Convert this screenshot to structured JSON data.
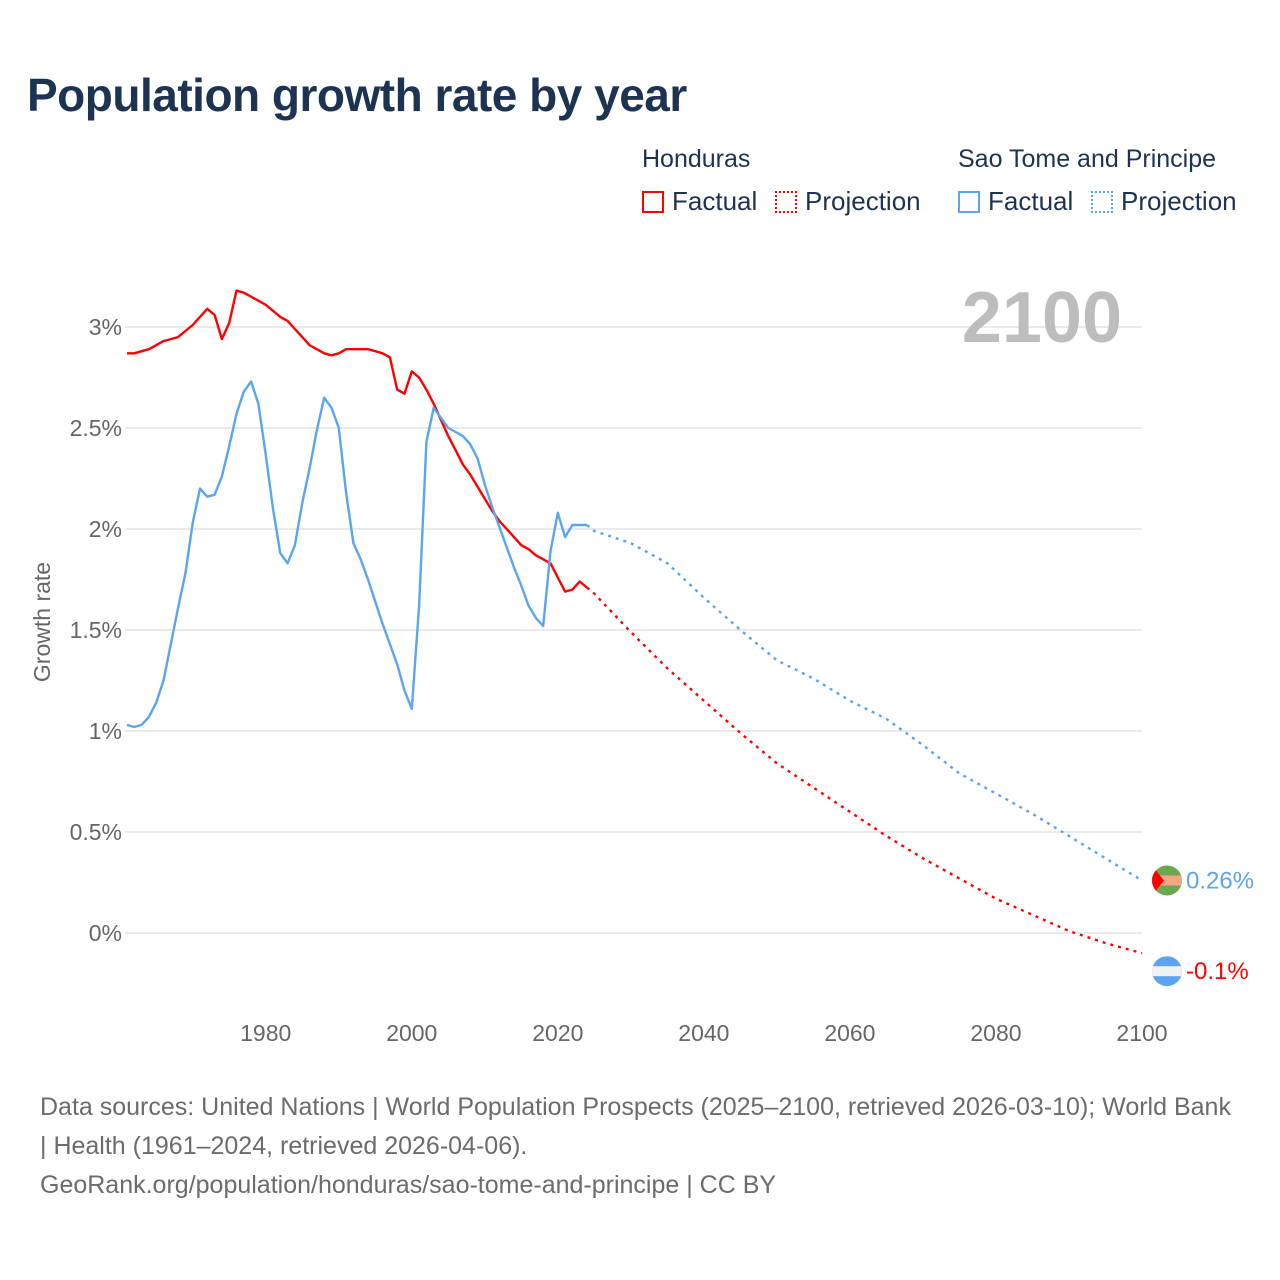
{
  "title": "Population growth rate by year",
  "legend": {
    "groups": [
      {
        "country": "Honduras",
        "factual": "Factual",
        "projection": "Projection",
        "color": "#ff0000"
      },
      {
        "country": "Sao Tome and Principe",
        "factual": "Factual",
        "projection": "Projection",
        "color": "#5aa5ee"
      }
    ]
  },
  "footer": {
    "line1": "Data sources: United Nations | World Population Prospects (2025–2100, retrieved 2026-03-10); World Bank | Health (1961–2024, retrieved 2026-04-06).",
    "line2": "GeoRank.org/population/honduras/sao-tome-and-principe | CC BY"
  },
  "chart_data": {
    "type": "line",
    "title": "Population growth rate by year",
    "xlabel": "",
    "ylabel": "Growth rate",
    "year_display": "2100",
    "xlim": [
      1961,
      2100
    ],
    "ylim": [
      -0.25,
      3.3
    ],
    "x_ticks": [
      1980,
      2000,
      2020,
      2040,
      2060,
      2080,
      2100
    ],
    "y_ticks": [
      {
        "v": 0,
        "label": "0%"
      },
      {
        "v": 0.5,
        "label": "0.5%"
      },
      {
        "v": 1,
        "label": "1%"
      },
      {
        "v": 1.5,
        "label": "1.5%"
      },
      {
        "v": 2,
        "label": "2%"
      },
      {
        "v": 2.5,
        "label": "2.5%"
      },
      {
        "v": 3,
        "label": "3%"
      }
    ],
    "grid": true,
    "series": [
      {
        "name": "Honduras",
        "color": "#ff0000",
        "end_label": "-0.1%",
        "factual": {
          "x0": 1961,
          "values": [
            2.87,
            2.87,
            2.88,
            2.89,
            2.91,
            2.93,
            2.94,
            2.95,
            2.98,
            3.01,
            3.05,
            3.09,
            3.06,
            2.94,
            3.02,
            3.18,
            3.17,
            3.15,
            3.13,
            3.11,
            3.08,
            3.05,
            3.03,
            2.99,
            2.95,
            2.91,
            2.89,
            2.87,
            2.86,
            2.87,
            2.89,
            2.89,
            2.89,
            2.89,
            2.88,
            2.87,
            2.85,
            2.69,
            2.67,
            2.78,
            2.75,
            2.69,
            2.62,
            2.54,
            2.46,
            2.39,
            2.32,
            2.27,
            2.21,
            2.15,
            2.09,
            2.04,
            2.0,
            1.96,
            1.92,
            1.9,
            1.87,
            1.85,
            1.83,
            1.76,
            1.69,
            1.7,
            1.74,
            1.71
          ]
        },
        "projection": {
          "x": [
            2024,
            2025,
            2030,
            2035,
            2040,
            2045,
            2050,
            2055,
            2060,
            2065,
            2070,
            2075,
            2080,
            2085,
            2090,
            2095,
            2100
          ],
          "values": [
            1.71,
            1.68,
            1.49,
            1.31,
            1.15,
            0.99,
            0.84,
            0.72,
            0.6,
            0.48,
            0.37,
            0.27,
            0.17,
            0.09,
            0.01,
            -0.05,
            -0.1
          ]
        }
      },
      {
        "name": "Sao Tome and Principe",
        "color": "#5aa5ee",
        "end_label": "0.26%",
        "factual": {
          "x0": 1961,
          "values": [
            1.03,
            1.02,
            1.03,
            1.07,
            1.14,
            1.25,
            1.43,
            1.61,
            1.78,
            2.03,
            2.2,
            2.16,
            2.17,
            2.26,
            2.41,
            2.57,
            2.68,
            2.73,
            2.62,
            2.37,
            2.1,
            1.88,
            1.83,
            1.92,
            2.13,
            2.3,
            2.49,
            2.65,
            2.6,
            2.5,
            2.18,
            1.93,
            1.85,
            1.75,
            1.64,
            1.53,
            1.43,
            1.33,
            1.2,
            1.11,
            1.62,
            2.43,
            2.6,
            2.55,
            2.5,
            2.48,
            2.46,
            2.42,
            2.35,
            2.22,
            2.11,
            2.01,
            1.91,
            1.81,
            1.72,
            1.62,
            1.56,
            1.52,
            1.89,
            2.08,
            1.96,
            2.02,
            2.02,
            2.02
          ]
        },
        "projection": {
          "x": [
            2024,
            2025,
            2030,
            2035,
            2040,
            2045,
            2050,
            2055,
            2060,
            2065,
            2070,
            2075,
            2080,
            2085,
            2090,
            2095,
            2100
          ],
          "values": [
            2.02,
            1.99,
            1.93,
            1.83,
            1.66,
            1.5,
            1.35,
            1.26,
            1.15,
            1.06,
            0.93,
            0.79,
            0.69,
            0.59,
            0.48,
            0.37,
            0.26
          ]
        }
      }
    ]
  }
}
